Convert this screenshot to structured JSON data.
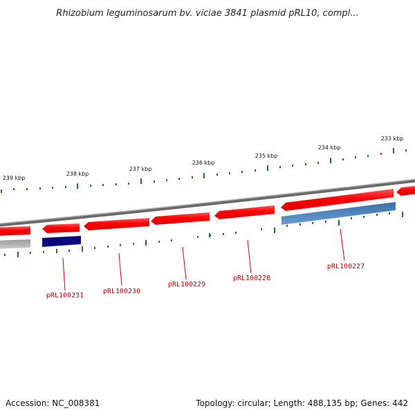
{
  "title": "Rhizobium leguminosarum bv. viciae 3841 plasmid pRL10, compl...",
  "footer": {
    "accession": "Accession: NC_008381",
    "summary": "Topology: circular; Length: 488,135 bp; Genes: 442"
  },
  "scale": {
    "labels": [
      "239 kbp",
      "238 kbp",
      "237 kbp",
      "236 kbp",
      "235 kbp",
      "234 kbp",
      "233 kbp"
    ]
  },
  "genes": {
    "labels": [
      "pRL100231",
      "pRL100230",
      "pRL100229",
      "pRL100228",
      "pRL100227"
    ]
  },
  "colors": {
    "forward_feature": "#ff1a1a",
    "reverse_feature_dark": "#0a0a80",
    "reverse_feature_blue": "#4a86c0",
    "backbone": "#888888",
    "tick": "#1a7a1a",
    "label_red": "#cc0000"
  }
}
